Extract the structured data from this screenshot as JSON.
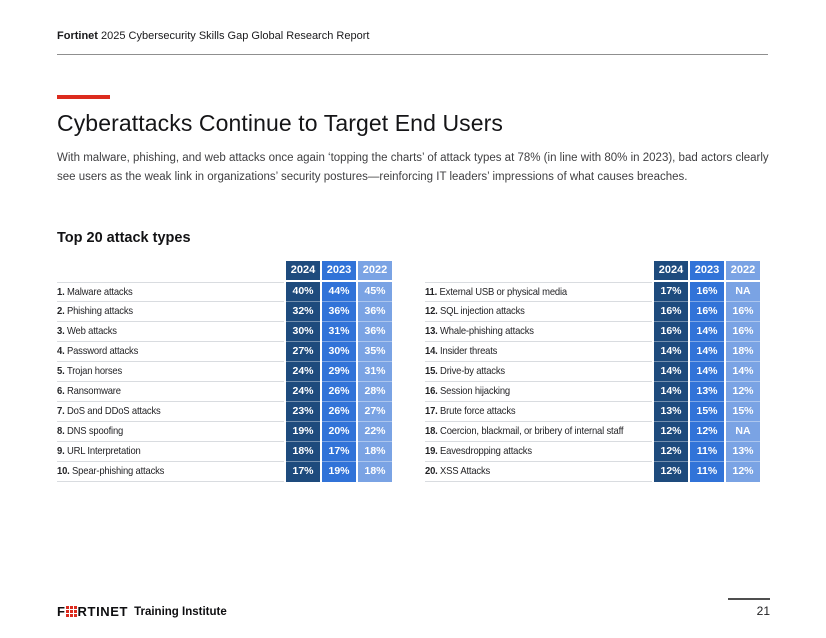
{
  "header": {
    "title_bold": "Fortinet",
    "title_rest": " 2025 Cybersecurity Skills Gap Global Research Report"
  },
  "page": {
    "title": "Cyberattacks Continue to Target End Users",
    "intro": "With malware, phishing, and web attacks once again ‘topping the charts’ of attack types at 78% (in line with 80% in 2023), bad actors clearly see users as the weak link in organizations’ security postures—reinforcing IT leaders’ impressions of what causes breaches.",
    "section_heading": "Top 20 attack types",
    "page_number": "21"
  },
  "footer": {
    "logo_f": "F",
    "logo_rest": "RTINET",
    "suffix": "Training Institute"
  },
  "colors": {
    "accent_red": "#dc2b1e",
    "col_2024": "#1e4b7d",
    "col_2023": "#3173d8",
    "col_2022": "#7aa3e4"
  },
  "chart_data": {
    "type": "table",
    "title": "Top 20 attack types",
    "columns": [
      "2024",
      "2023",
      "2022"
    ],
    "rows": [
      {
        "rank": "1",
        "label": "Malware attacks",
        "values": [
          "40%",
          "44%",
          "45%"
        ]
      },
      {
        "rank": "2",
        "label": "Phishing attacks",
        "values": [
          "32%",
          "36%",
          "36%"
        ]
      },
      {
        "rank": "3",
        "label": "Web attacks",
        "values": [
          "30%",
          "31%",
          "36%"
        ]
      },
      {
        "rank": "4",
        "label": "Password attacks",
        "values": [
          "27%",
          "30%",
          "35%"
        ]
      },
      {
        "rank": "5",
        "label": "Trojan horses",
        "values": [
          "24%",
          "29%",
          "31%"
        ]
      },
      {
        "rank": "6",
        "label": "Ransomware",
        "values": [
          "24%",
          "26%",
          "28%"
        ]
      },
      {
        "rank": "7",
        "label": "DoS and DDoS attacks",
        "values": [
          "23%",
          "26%",
          "27%"
        ]
      },
      {
        "rank": "8",
        "label": "DNS spoofing",
        "values": [
          "19%",
          "20%",
          "22%"
        ]
      },
      {
        "rank": "9",
        "label": "URL Interpretation",
        "values": [
          "18%",
          "17%",
          "18%"
        ]
      },
      {
        "rank": "10",
        "label": "Spear-phishing attacks",
        "values": [
          "17%",
          "19%",
          "18%"
        ]
      },
      {
        "rank": "11",
        "label": "External USB or physical media",
        "values": [
          "17%",
          "16%",
          "NA"
        ]
      },
      {
        "rank": "12",
        "label": "SQL injection attacks",
        "values": [
          "16%",
          "16%",
          "16%"
        ]
      },
      {
        "rank": "13",
        "label": "Whale-phishing attacks",
        "values": [
          "16%",
          "14%",
          "16%"
        ]
      },
      {
        "rank": "14",
        "label": "Insider threats",
        "values": [
          "14%",
          "14%",
          "18%"
        ]
      },
      {
        "rank": "15",
        "label": "Drive-by attacks",
        "values": [
          "14%",
          "14%",
          "14%"
        ]
      },
      {
        "rank": "16",
        "label": "Session hijacking",
        "values": [
          "14%",
          "13%",
          "12%"
        ]
      },
      {
        "rank": "17",
        "label": "Brute force attacks",
        "values": [
          "13%",
          "15%",
          "15%"
        ]
      },
      {
        "rank": "18",
        "label": "Coercion, blackmail, or bribery of internal staff",
        "values": [
          "12%",
          "12%",
          "NA"
        ]
      },
      {
        "rank": "19",
        "label": "Eavesdropping attacks",
        "values": [
          "12%",
          "11%",
          "13%"
        ]
      },
      {
        "rank": "20",
        "label": "XSS Attacks",
        "values": [
          "12%",
          "11%",
          "12%"
        ]
      }
    ]
  }
}
